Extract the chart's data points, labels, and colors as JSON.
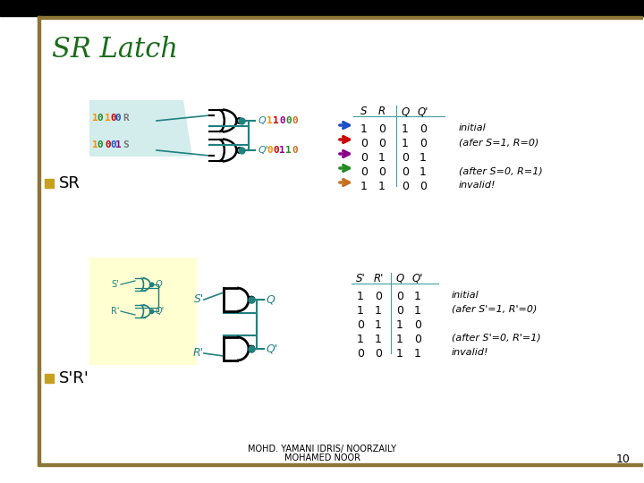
{
  "title": "SR Latch",
  "title_color": "#1B6B1B",
  "bg_color": "#ffffff",
  "border_color": "#8B7536",
  "bullet_color": "#C8A020",
  "footer_line1": "MOHD. YAMANI IDRIS/ NOORZAILY",
  "footer_line2": "MOHAMED NOOR",
  "footer_page": "10",
  "upper_r_digits": [
    [
      "1",
      "#FF8C00"
    ],
    [
      "0",
      "#228B22"
    ],
    [
      " ",
      ""
    ],
    [
      "1",
      "#FF8C00"
    ],
    [
      "0",
      "#CC0000"
    ],
    [
      "0",
      "#1E4EC8"
    ],
    [
      " ",
      ""
    ],
    [
      "R",
      "#777777"
    ]
  ],
  "upper_s_digits": [
    [
      "1",
      "#FF8C00"
    ],
    [
      "0",
      "#228B22"
    ],
    [
      " ",
      ""
    ],
    [
      "0",
      "#CC0000"
    ],
    [
      "0",
      "#1E4EC8"
    ],
    [
      "1",
      "#8B008B"
    ],
    [
      " ",
      ""
    ],
    [
      "S",
      "#777777"
    ]
  ],
  "upper_q_bits": [
    [
      "Q",
      "#20A0A0"
    ],
    [
      " ",
      ""
    ],
    [
      "1",
      "#FF8C00"
    ],
    [
      "1",
      "#CC0000"
    ],
    [
      "0",
      "#8B008B"
    ],
    [
      "0",
      "#228B22"
    ],
    [
      "0",
      "#C87020"
    ]
  ],
  "upper_qp_bits": [
    "Q'",
    "#20A0A0",
    [
      " ",
      ""
    ],
    [
      "0",
      "#FF8C00"
    ],
    [
      "0",
      "#CC0000"
    ],
    [
      "1",
      "#8B008B"
    ],
    [
      "1",
      "#228B22"
    ],
    [
      "0",
      "#C87020"
    ]
  ],
  "upper_table_headers": [
    "S",
    "R",
    "Q",
    "Q'"
  ],
  "upper_table_rows": [
    {
      "arrow_color": "#1E4EC8",
      "S": "1",
      "R": "0",
      "Q": "1",
      "Qp": "0",
      "note": "initial"
    },
    {
      "arrow_color": "#CC0000",
      "S": "0",
      "R": "0",
      "Q": "1",
      "Qp": "0",
      "note": "(afer S=1, R=0)"
    },
    {
      "arrow_color": "#8B008B",
      "S": "0",
      "R": "1",
      "Q": "0",
      "Qp": "1",
      "note": ""
    },
    {
      "arrow_color": "#228B22",
      "S": "0",
      "R": "0",
      "Q": "0",
      "Qp": "1",
      "note": "(after S=0, R=1)"
    },
    {
      "arrow_color": "#C87020",
      "S": "1",
      "R": "1",
      "Q": "0",
      "Qp": "0",
      "note": "invalid!"
    }
  ],
  "lower_table_headers": [
    "S'",
    "R'",
    "Q",
    "Q'"
  ],
  "lower_table_rows": [
    {
      "S": "1",
      "R": "0",
      "Q": "0",
      "Qp": "1",
      "note": "initial"
    },
    {
      "S": "1",
      "R": "1",
      "Q": "0",
      "Qp": "1",
      "note": "(afer S'=1, R'=0)"
    },
    {
      "S": "0",
      "R": "1",
      "Q": "1",
      "Qp": "0",
      "note": ""
    },
    {
      "S": "1",
      "R": "1",
      "Q": "1",
      "Qp": "0",
      "note": "(after S'=0, R'=1)"
    },
    {
      "S": "0",
      "R": "0",
      "Q": "1",
      "Qp": "1",
      "note": "invalid!"
    }
  ]
}
